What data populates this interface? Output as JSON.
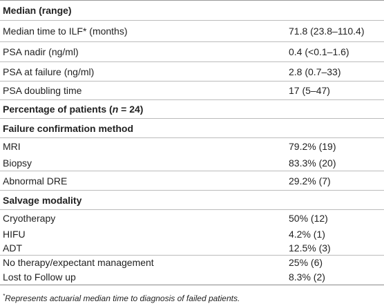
{
  "table": {
    "rows": [
      {
        "section": [
          "Median (range)"
        ]
      },
      {
        "label": "Median time to ILF* (months)",
        "value": "71.8 (23.8–110.4)"
      },
      {
        "label": "PSA nadir (ng/ml)",
        "value": "0.4 (<0.1–1.6)"
      },
      {
        "label": "PSA at failure (ng/ml)",
        "value": "2.8 (0.7–33)"
      },
      {
        "label": "PSA doubling time",
        "value": "17 (5–47)"
      },
      {
        "section": [
          "Percentage of patients (",
          "n",
          " = 24)"
        ]
      },
      {
        "section": [
          "Failure confirmation method"
        ]
      },
      {
        "label": "MRI",
        "value": "79.2% (19)"
      },
      {
        "label": "Biopsy",
        "value": "83.3% (20)"
      },
      {
        "label": "Abnormal DRE",
        "value": "29.2% (7)"
      },
      {
        "section": [
          "Salvage modality"
        ]
      },
      {
        "label": "Cryotherapy",
        "value": "50% (12)"
      },
      {
        "label": "HIFU",
        "value": "4.2% (1)"
      },
      {
        "label": "ADT",
        "value": "12.5% (3)"
      },
      {
        "label": "No therapy/expectant management",
        "value": "25% (6)"
      },
      {
        "label": "Lost to Follow up",
        "value": "8.3% (2)"
      }
    ]
  },
  "footnote": {
    "mark": "*",
    "text": "Represents actuarial median time to diagnosis of failed patients."
  }
}
